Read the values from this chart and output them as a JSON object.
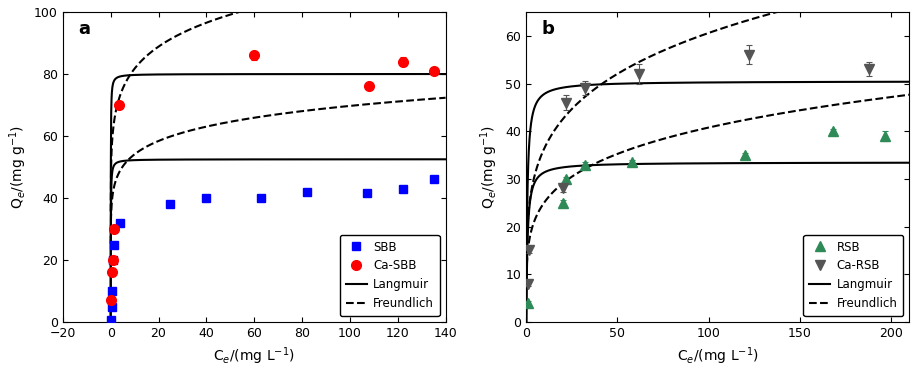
{
  "panel_a": {
    "xlim": [
      -20,
      140
    ],
    "ylim": [
      0,
      100
    ],
    "xticks": [
      -20,
      0,
      20,
      40,
      60,
      80,
      100,
      120,
      140
    ],
    "yticks": [
      0,
      20,
      40,
      60,
      80,
      100
    ],
    "xlabel": "C$_{e}$/(mg L$^{-1}$)",
    "ylabel": "Q$_{e}$/(mg g$^{-1}$)",
    "label": "a",
    "SBB_x": [
      0.3,
      0.5,
      0.7,
      1.0,
      1.5,
      4.0,
      25,
      40,
      63,
      82,
      107,
      122,
      135
    ],
    "SBB_y": [
      0.5,
      5.0,
      10.0,
      20.0,
      25.0,
      32.0,
      38.0,
      40.0,
      40.0,
      42.0,
      41.5,
      43.0,
      46.0
    ],
    "SBB_yerr": [
      0.3,
      0.3,
      0.3,
      0.5,
      0.5,
      0.8,
      0.8,
      0.5,
      0.5,
      0.5,
      0.5,
      0.5,
      0.5
    ],
    "CaSBB_x": [
      0.2,
      0.5,
      0.8,
      1.2,
      3.5,
      60,
      108,
      122,
      135
    ],
    "CaSBB_y": [
      7.0,
      16.0,
      20.0,
      30.0,
      70.0,
      86.0,
      76.0,
      84.0,
      81.0
    ],
    "CaSBB_yerr": [
      0.4,
      0.4,
      0.4,
      0.5,
      1.0,
      1.5,
      0.5,
      1.5,
      1.0
    ],
    "langmuir_upper_qmax": 80.0,
    "langmuir_upper_KL": 25.0,
    "langmuir_lower_qmax": 52.5,
    "langmuir_lower_KL": 18.0,
    "freundlich_upper_KF": 62.0,
    "freundlich_upper_n": 0.12,
    "freundlich_lower_KF": 42.0,
    "freundlich_lower_n": 0.11,
    "freu_xstart": 0.01,
    "freu_xend": 140
  },
  "panel_b": {
    "xlim": [
      0,
      210
    ],
    "ylim": [
      0,
      65
    ],
    "xticks": [
      0,
      50,
      100,
      150,
      200
    ],
    "yticks": [
      0,
      10,
      20,
      30,
      40,
      50,
      60
    ],
    "xlabel": "C$_{e}$/(mg L$^{-1}$)",
    "ylabel": "Q$_{e}$/(mg g$^{-1}$)",
    "label": "b",
    "RSB_x": [
      1.0,
      20.0,
      22.0,
      32.0,
      58.0,
      120.0,
      168.0,
      197.0
    ],
    "RSB_y": [
      4.0,
      25.0,
      30.0,
      33.0,
      33.5,
      35.0,
      40.0,
      39.0
    ],
    "RSB_yerr": [
      0.5,
      0.5,
      0.5,
      0.5,
      0.5,
      0.5,
      0.5,
      1.0
    ],
    "CaRSB_x": [
      0.8,
      1.5,
      20.0,
      22.0,
      32.0,
      62.0,
      122.0,
      188.0
    ],
    "CaRSB_y": [
      8.0,
      15.0,
      28.0,
      46.0,
      49.0,
      52.0,
      56.0,
      53.0
    ],
    "CaRSB_yerr": [
      0.5,
      0.5,
      0.8,
      1.5,
      1.5,
      2.0,
      2.0,
      1.5
    ],
    "langmuir_upper_qmax": 50.5,
    "langmuir_upper_KL": 1.8,
    "langmuir_lower_qmax": 33.5,
    "langmuir_lower_KL": 1.5,
    "freundlich_upper_KF": 22.0,
    "freundlich_upper_n": 0.22,
    "freundlich_lower_KF": 15.5,
    "freundlich_lower_n": 0.21,
    "freu_xstart": 0.1,
    "freu_xend": 210
  },
  "SBB_color": "#0000FF",
  "CaSBB_color": "#FF0000",
  "RSB_color": "#2E8B57",
  "CaRSB_color": "#555555",
  "line_color": "#000000",
  "figsize": [
    9.16,
    3.74
  ],
  "dpi": 100
}
